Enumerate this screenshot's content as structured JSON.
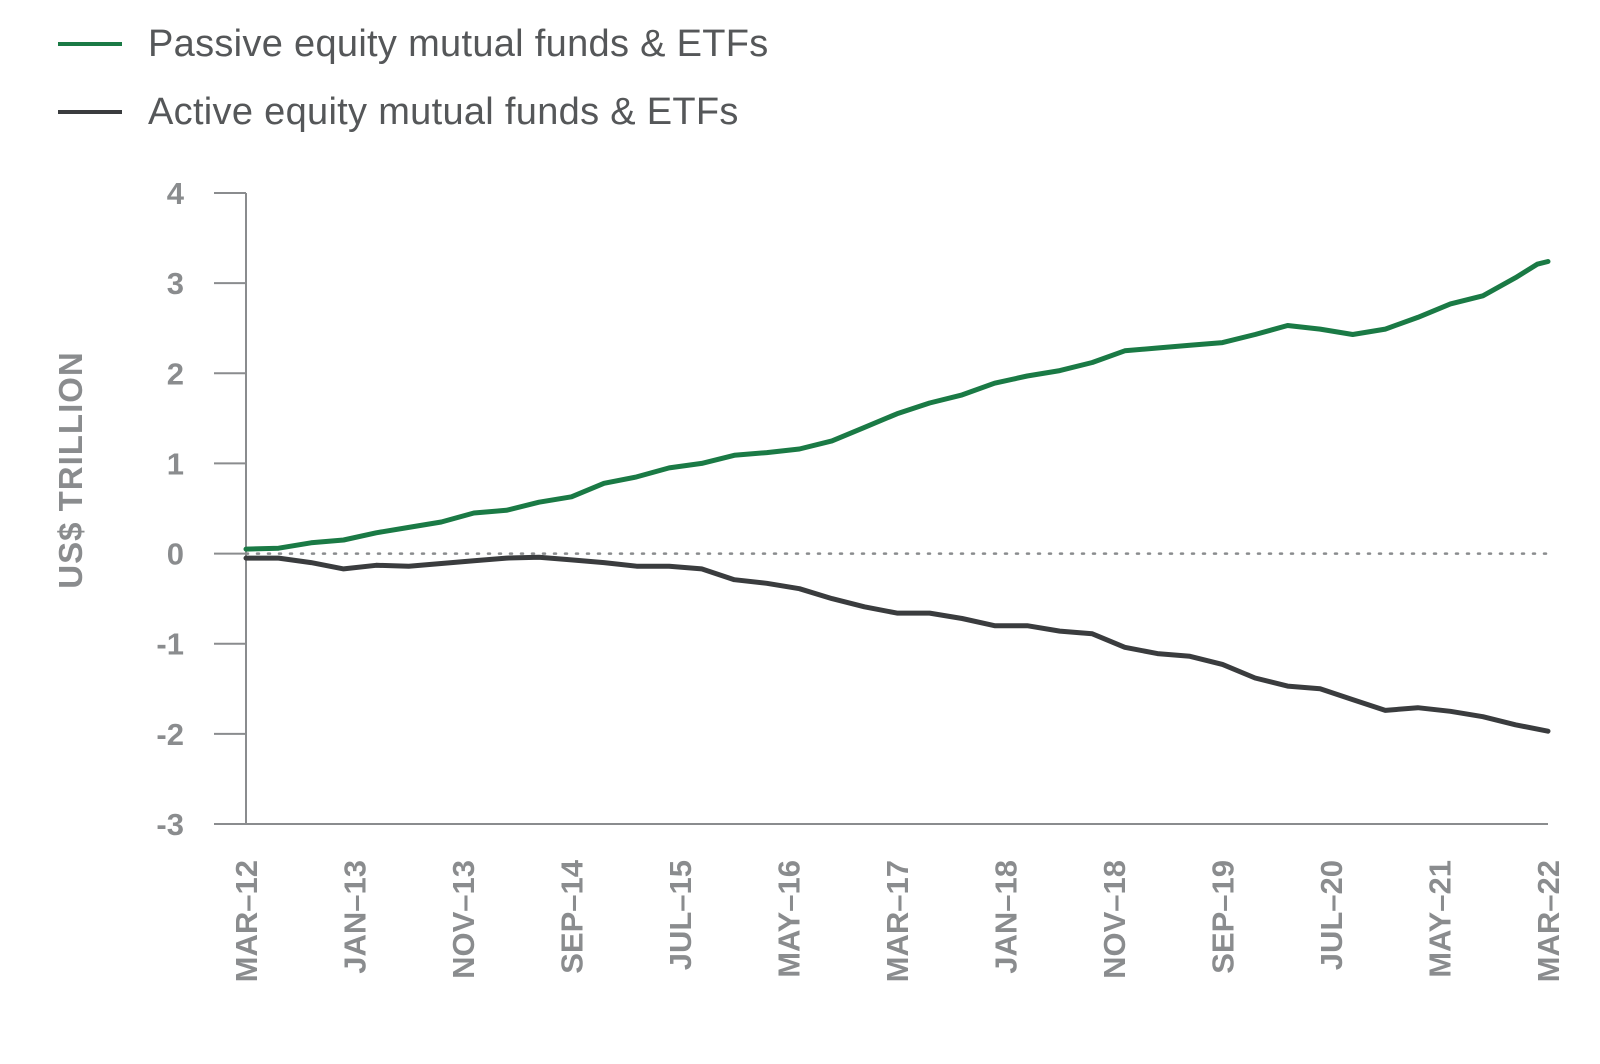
{
  "legend": {
    "passive_label": "Passive equity mutual funds & ETFs",
    "active_label": "Active equity mutual funds & ETFs"
  },
  "colors": {
    "passive": "#1a7a45",
    "active": "#3a3c3e",
    "axis": "#8a8c8e",
    "zero_line": "#8a8c8e"
  },
  "chart_data": {
    "type": "line",
    "title": "",
    "xlabel": "",
    "ylabel": "US$ TRILLION",
    "ylim": [
      -3,
      4
    ],
    "yticks": [
      4,
      3,
      2,
      1,
      0,
      -1,
      -2,
      -3
    ],
    "ytick_labels": [
      "4",
      "3",
      "2",
      "1",
      "0",
      "-1",
      "-2",
      "-3"
    ],
    "x_tick_labels": [
      "MAR–12",
      "JAN–13",
      "NOV–13",
      "SEP–14",
      "JUL–15",
      "MAY–16",
      "MAR–17",
      "JAN–18",
      "NOV–18",
      "SEP–19",
      "JUL–20",
      "MAY–21",
      "MAR–22"
    ],
    "x_range_months": [
      0,
      120
    ],
    "series": [
      {
        "name": "Passive equity mutual funds & ETFs",
        "x": [
          0,
          3,
          6,
          9,
          12,
          15,
          18,
          21,
          24,
          27,
          30,
          33,
          36,
          39,
          42,
          45,
          48,
          51,
          54,
          57,
          60,
          63,
          66,
          69,
          72,
          75,
          78,
          81,
          84,
          87,
          90,
          93,
          96,
          99,
          102,
          105,
          108,
          111,
          114,
          117,
          119,
          120
        ],
        "values": [
          0.05,
          0.06,
          0.12,
          0.15,
          0.23,
          0.29,
          0.35,
          0.45,
          0.48,
          0.57,
          0.63,
          0.78,
          0.85,
          0.95,
          1.0,
          1.09,
          1.12,
          1.16,
          1.25,
          1.4,
          1.55,
          1.67,
          1.76,
          1.89,
          1.97,
          2.03,
          2.12,
          2.25,
          2.28,
          2.31,
          2.34,
          2.43,
          2.53,
          2.49,
          2.43,
          2.49,
          2.62,
          2.77,
          2.86,
          3.06,
          3.21,
          3.24
        ]
      },
      {
        "name": "Active equity mutual funds & ETFs",
        "x": [
          0,
          3,
          6,
          9,
          12,
          15,
          18,
          21,
          24,
          27,
          30,
          33,
          36,
          39,
          42,
          45,
          48,
          51,
          54,
          57,
          60,
          63,
          66,
          69,
          72,
          75,
          78,
          81,
          84,
          87,
          90,
          93,
          96,
          99,
          102,
          105,
          108,
          111,
          114,
          117,
          120
        ],
        "values": [
          -0.05,
          -0.05,
          -0.1,
          -0.17,
          -0.13,
          -0.14,
          -0.11,
          -0.08,
          -0.05,
          -0.04,
          -0.07,
          -0.1,
          -0.14,
          -0.14,
          -0.17,
          -0.29,
          -0.33,
          -0.39,
          -0.5,
          -0.59,
          -0.66,
          -0.66,
          -0.72,
          -0.8,
          -0.8,
          -0.86,
          -0.89,
          -1.04,
          -1.11,
          -1.14,
          -1.23,
          -1.38,
          -1.47,
          -1.5,
          -1.62,
          -1.74,
          -1.71,
          -1.75,
          -1.81,
          -1.9,
          -1.97
        ]
      }
    ]
  }
}
